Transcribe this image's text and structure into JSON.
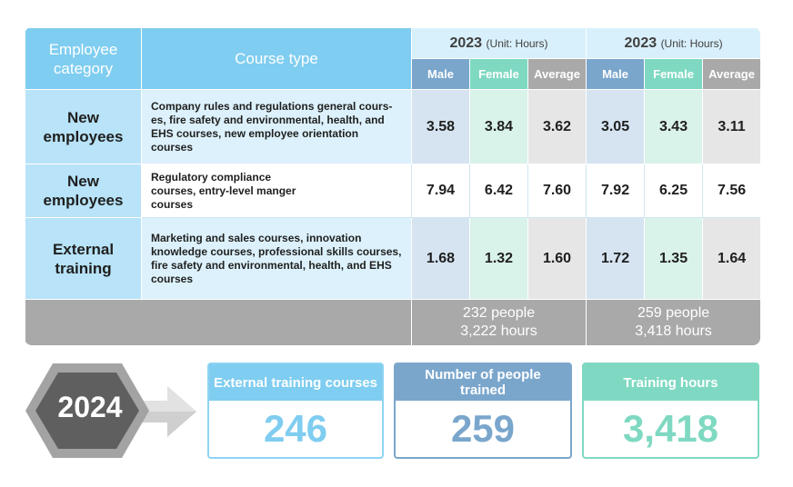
{
  "table": {
    "header": {
      "employee_category": "Employee category",
      "course_type": "Course type",
      "year_a": "2023",
      "year_b": "2023",
      "unit": "(Unit: Hours)",
      "male": "Male",
      "female": "Female",
      "average": "Average"
    },
    "rows": [
      {
        "category": "New employees",
        "course": "Company rules and regulations general cours-es, fire safety and environmental, health, and EHS courses, new employee orientation courses",
        "a_male": "3.58",
        "a_female": "3.84",
        "a_avg": "3.62",
        "b_male": "3.05",
        "b_female": "3.43",
        "b_avg": "3.11"
      },
      {
        "category": "New employees",
        "course": "Regulatory compliance courses, entry-level manger courses",
        "a_male": "7.94",
        "a_female": "6.42",
        "a_avg": "7.60",
        "b_male": "7.92",
        "b_female": "6.25",
        "b_avg": "7.56"
      },
      {
        "category": "External training",
        "course": "Marketing and sales courses, innovation knowledge courses, professional skills courses, fire safety and environmental, health, and EHS courses",
        "a_male": "1.68",
        "a_female": "1.32",
        "a_avg": "1.60",
        "b_male": "1.72",
        "b_female": "1.35",
        "b_avg": "1.64"
      }
    ],
    "totals": {
      "a_people": "232 people",
      "a_hours": "3,222 hours",
      "b_people": "259 people",
      "b_hours": "3,418 hours"
    }
  },
  "summary": {
    "year": "2024",
    "cards": [
      {
        "label": "External training courses",
        "value": "246"
      },
      {
        "label": "Number of people trained",
        "value": "259"
      },
      {
        "label": "Training hours",
        "value": "3,418"
      }
    ]
  }
}
